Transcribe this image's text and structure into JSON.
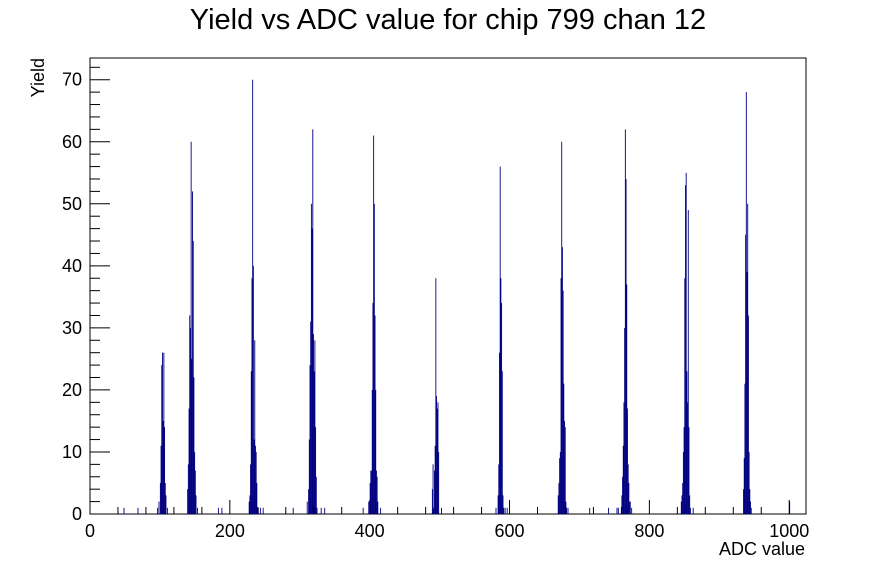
{
  "chart_data": {
    "type": "bar",
    "title": "Yield vs ADC value for chip 799 chan 12",
    "xlabel": "ADC value",
    "ylabel": "Yield",
    "xlim": [
      0,
      1024
    ],
    "ylim": [
      0,
      73.5
    ],
    "x_ticks": [
      0,
      200,
      400,
      600,
      800,
      1000
    ],
    "y_ticks": [
      0,
      10,
      20,
      30,
      40,
      50,
      60,
      70
    ],
    "grid": false,
    "legend": "none",
    "bar_color": "#000080",
    "series": [
      {
        "bins": [
          [
            48,
            1
          ],
          [
            68,
            1
          ],
          [
            96,
            1
          ],
          [
            98,
            2
          ],
          [
            100,
            5
          ],
          [
            101,
            11
          ],
          [
            102,
            24
          ],
          [
            103,
            26
          ],
          [
            104,
            15
          ],
          [
            105,
            26
          ],
          [
            106,
            14
          ],
          [
            107,
            5
          ],
          [
            108,
            3
          ],
          [
            110,
            1
          ],
          [
            139,
            4
          ],
          [
            140,
            8
          ],
          [
            141,
            17
          ],
          [
            142,
            32
          ],
          [
            143,
            30
          ],
          [
            144,
            60
          ],
          [
            145,
            25
          ],
          [
            146,
            52
          ],
          [
            147,
            44
          ],
          [
            148,
            22
          ],
          [
            149,
            10
          ],
          [
            150,
            7
          ],
          [
            151,
            3
          ],
          [
            153,
            1
          ],
          [
            183,
            1
          ],
          [
            188,
            1
          ],
          [
            227,
            2
          ],
          [
            228,
            3
          ],
          [
            229,
            8
          ],
          [
            230,
            23
          ],
          [
            231,
            38
          ],
          [
            232,
            70
          ],
          [
            233,
            40
          ],
          [
            234,
            12
          ],
          [
            235,
            28
          ],
          [
            236,
            11
          ],
          [
            237,
            10
          ],
          [
            238,
            5
          ],
          [
            239,
            1
          ],
          [
            240,
            1
          ],
          [
            243,
            1
          ],
          [
            247,
            1
          ],
          [
            290,
            1
          ],
          [
            310,
            2
          ],
          [
            312,
            4
          ],
          [
            313,
            12
          ],
          [
            314,
            24
          ],
          [
            315,
            31
          ],
          [
            316,
            50
          ],
          [
            317,
            46
          ],
          [
            318,
            62
          ],
          [
            319,
            29
          ],
          [
            320,
            23
          ],
          [
            321,
            28
          ],
          [
            322,
            14
          ],
          [
            323,
            6
          ],
          [
            324,
            1
          ],
          [
            330,
            1
          ],
          [
            335,
            1
          ],
          [
            390,
            1
          ],
          [
            398,
            2
          ],
          [
            400,
            5
          ],
          [
            401,
            7
          ],
          [
            402,
            7
          ],
          [
            403,
            20
          ],
          [
            404,
            34
          ],
          [
            405,
            61
          ],
          [
            406,
            50
          ],
          [
            407,
            32
          ],
          [
            408,
            20
          ],
          [
            409,
            7
          ],
          [
            410,
            6
          ],
          [
            411,
            2
          ],
          [
            415,
            1
          ],
          [
            489,
            4
          ],
          [
            490,
            8
          ],
          [
            491,
            1
          ],
          [
            492,
            7
          ],
          [
            493,
            11
          ],
          [
            494,
            38
          ],
          [
            495,
            19
          ],
          [
            496,
            17
          ],
          [
            497,
            18
          ],
          [
            498,
            10
          ],
          [
            502,
            1
          ],
          [
            580,
            1
          ],
          [
            583,
            3
          ],
          [
            584,
            8
          ],
          [
            585,
            26
          ],
          [
            586,
            56
          ],
          [
            587,
            38
          ],
          [
            588,
            34
          ],
          [
            589,
            23
          ],
          [
            590,
            3
          ],
          [
            591,
            1
          ],
          [
            593,
            1
          ],
          [
            596,
            1
          ],
          [
            669,
            3
          ],
          [
            670,
            5
          ],
          [
            671,
            9
          ],
          [
            672,
            10
          ],
          [
            673,
            38
          ],
          [
            674,
            60
          ],
          [
            675,
            43
          ],
          [
            676,
            36
          ],
          [
            677,
            21
          ],
          [
            678,
            15
          ],
          [
            679,
            14
          ],
          [
            680,
            2
          ],
          [
            681,
            1
          ],
          [
            683,
            1
          ],
          [
            714,
            1
          ],
          [
            741,
            1
          ],
          [
            753,
            1
          ],
          [
            755,
            1
          ],
          [
            760,
            3
          ],
          [
            761,
            6
          ],
          [
            762,
            11
          ],
          [
            763,
            18
          ],
          [
            764,
            30
          ],
          [
            765,
            62
          ],
          [
            766,
            54
          ],
          [
            767,
            37
          ],
          [
            768,
            17
          ],
          [
            769,
            8
          ],
          [
            770,
            5
          ],
          [
            771,
            2
          ],
          [
            772,
            2
          ],
          [
            774,
            1
          ],
          [
            845,
            2
          ],
          [
            846,
            3
          ],
          [
            847,
            5
          ],
          [
            848,
            10
          ],
          [
            849,
            14
          ],
          [
            850,
            38
          ],
          [
            851,
            53
          ],
          [
            852,
            55
          ],
          [
            853,
            23
          ],
          [
            854,
            18
          ],
          [
            855,
            49
          ],
          [
            856,
            14
          ],
          [
            857,
            3
          ],
          [
            858,
            1
          ],
          [
            862,
            1
          ],
          [
            934,
            4
          ],
          [
            935,
            9
          ],
          [
            936,
            21
          ],
          [
            937,
            45
          ],
          [
            938,
            68
          ],
          [
            939,
            39
          ],
          [
            940,
            50
          ],
          [
            941,
            32
          ],
          [
            942,
            10
          ],
          [
            943,
            4
          ],
          [
            944,
            2
          ],
          [
            945,
            1
          ],
          [
            1000,
            2
          ]
        ]
      }
    ]
  }
}
